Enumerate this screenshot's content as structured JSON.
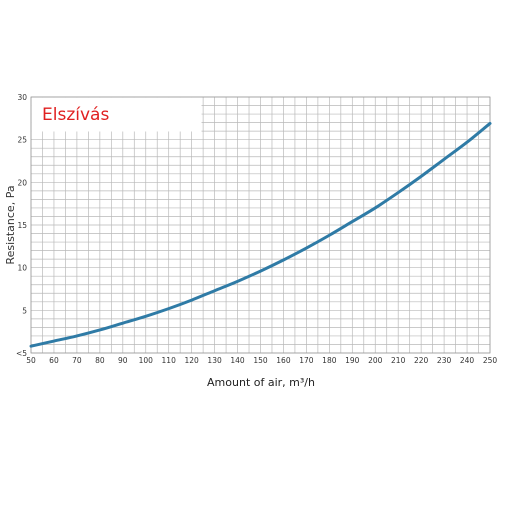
{
  "chart_data": {
    "type": "line",
    "title": "Elszívás",
    "xlabel": "Amount of air, m³/h",
    "ylabel": "Resistance, Pa",
    "x_ticks": [
      "50",
      "60",
      "70",
      "80",
      "90",
      "100",
      "110",
      "120",
      "130",
      "140",
      "150",
      "160",
      "170",
      "180",
      "190",
      "200",
      "210",
      "220",
      "230",
      "240",
      "250"
    ],
    "y_ticks": [
      "<5",
      "5",
      "10",
      "15",
      "20",
      "25",
      "30"
    ],
    "xlim": [
      50,
      250
    ],
    "ylim": [
      0,
      30
    ],
    "grid": true,
    "legend": "none",
    "series": [
      {
        "color": "#2f7ba6",
        "x": [
          50,
          60,
          70,
          80,
          90,
          100,
          110,
          120,
          130,
          140,
          150,
          160,
          170,
          180,
          190,
          200,
          210,
          220,
          230,
          240,
          250
        ],
        "y": [
          0.8,
          1.4,
          2.0,
          2.7,
          3.5,
          4.3,
          5.2,
          6.2,
          7.3,
          8.4,
          9.6,
          10.9,
          12.3,
          13.8,
          15.4,
          17.0,
          18.8,
          20.7,
          22.7,
          24.7,
          26.9
        ]
      }
    ]
  }
}
